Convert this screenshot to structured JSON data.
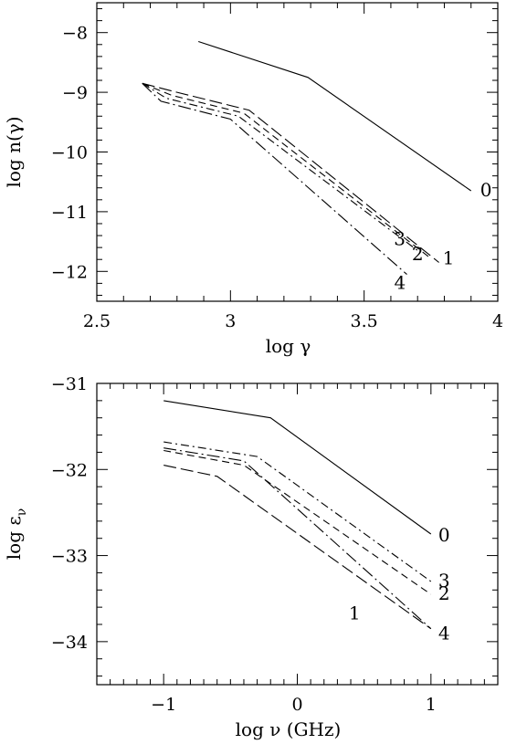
{
  "chart_data": [
    {
      "type": "line",
      "xlabel": "log  γ",
      "ylabel": "log n(γ)",
      "xlim": [
        2.5,
        4.0
      ],
      "ylim": [
        -12.5,
        -7.5
      ],
      "xticks": [
        2.5,
        3,
        3.5,
        4
      ],
      "xtick_labels": [
        "2.5",
        "3",
        "3.5",
        "4"
      ],
      "yticks": [
        -12,
        -11,
        -10,
        -9,
        -8
      ],
      "ytick_labels": [
        "−12",
        "−11",
        "−10",
        "−9",
        "−8"
      ],
      "grid": false,
      "series": [
        {
          "name": "0",
          "dash": "solid",
          "x": [
            2.88,
            3.29,
            3.9
          ],
          "y": [
            -8.15,
            -8.75,
            -10.65
          ]
        },
        {
          "name": "1",
          "dash": "long-dash",
          "x": [
            2.67,
            2.8,
            3.07,
            3.78
          ],
          "y": [
            -8.85,
            -9.0,
            -9.3,
            -11.85
          ]
        },
        {
          "name": "2",
          "dash": "dash",
          "x": [
            2.67,
            2.78,
            3.05,
            3.74
          ],
          "y": [
            -8.85,
            -9.05,
            -9.35,
            -11.75
          ]
        },
        {
          "name": "3",
          "dash": "dash-dot",
          "x": [
            2.67,
            2.76,
            3.03,
            3.7
          ],
          "y": [
            -8.85,
            -9.1,
            -9.4,
            -11.65
          ]
        },
        {
          "name": "4",
          "dash": "dash-dot-long",
          "x": [
            2.67,
            2.74,
            3.0,
            3.66
          ],
          "y": [
            -8.85,
            -9.15,
            -9.45,
            -12.05
          ]
        }
      ]
    },
    {
      "type": "line",
      "xlabel": "log  ν (GHz)",
      "ylabel": "log ε",
      "ylabel_sub": "ν",
      "xlim": [
        -1.5,
        1.5
      ],
      "ylim": [
        -34.5,
        -31.0
      ],
      "xticks": [
        -1,
        0,
        1
      ],
      "xtick_labels": [
        "−1",
        "0",
        "1"
      ],
      "yticks": [
        -34,
        -33,
        -32,
        -31
      ],
      "ytick_labels": [
        "−34",
        "−33",
        "−32",
        "−31"
      ],
      "grid": false,
      "series": [
        {
          "name": "0",
          "dash": "solid",
          "x": [
            -1.0,
            -0.2,
            1.0
          ],
          "y": [
            -31.2,
            -31.4,
            -32.75
          ]
        },
        {
          "name": "1",
          "dash": "long-dash",
          "x": [
            -1.0,
            -0.6,
            1.0
          ],
          "y": [
            -31.95,
            -32.08,
            -33.85
          ]
        },
        {
          "name": "2",
          "dash": "dash",
          "x": [
            -1.0,
            -0.4,
            1.0
          ],
          "y": [
            -31.78,
            -31.95,
            -33.45
          ]
        },
        {
          "name": "3",
          "dash": "dash-dot",
          "x": [
            -1.0,
            -0.3,
            1.0
          ],
          "y": [
            -31.68,
            -31.85,
            -33.3
          ]
        },
        {
          "name": "4",
          "dash": "dash-dot-long",
          "x": [
            -1.0,
            -0.4,
            1.0
          ],
          "y": [
            -31.75,
            -31.9,
            -33.85
          ]
        }
      ]
    }
  ]
}
